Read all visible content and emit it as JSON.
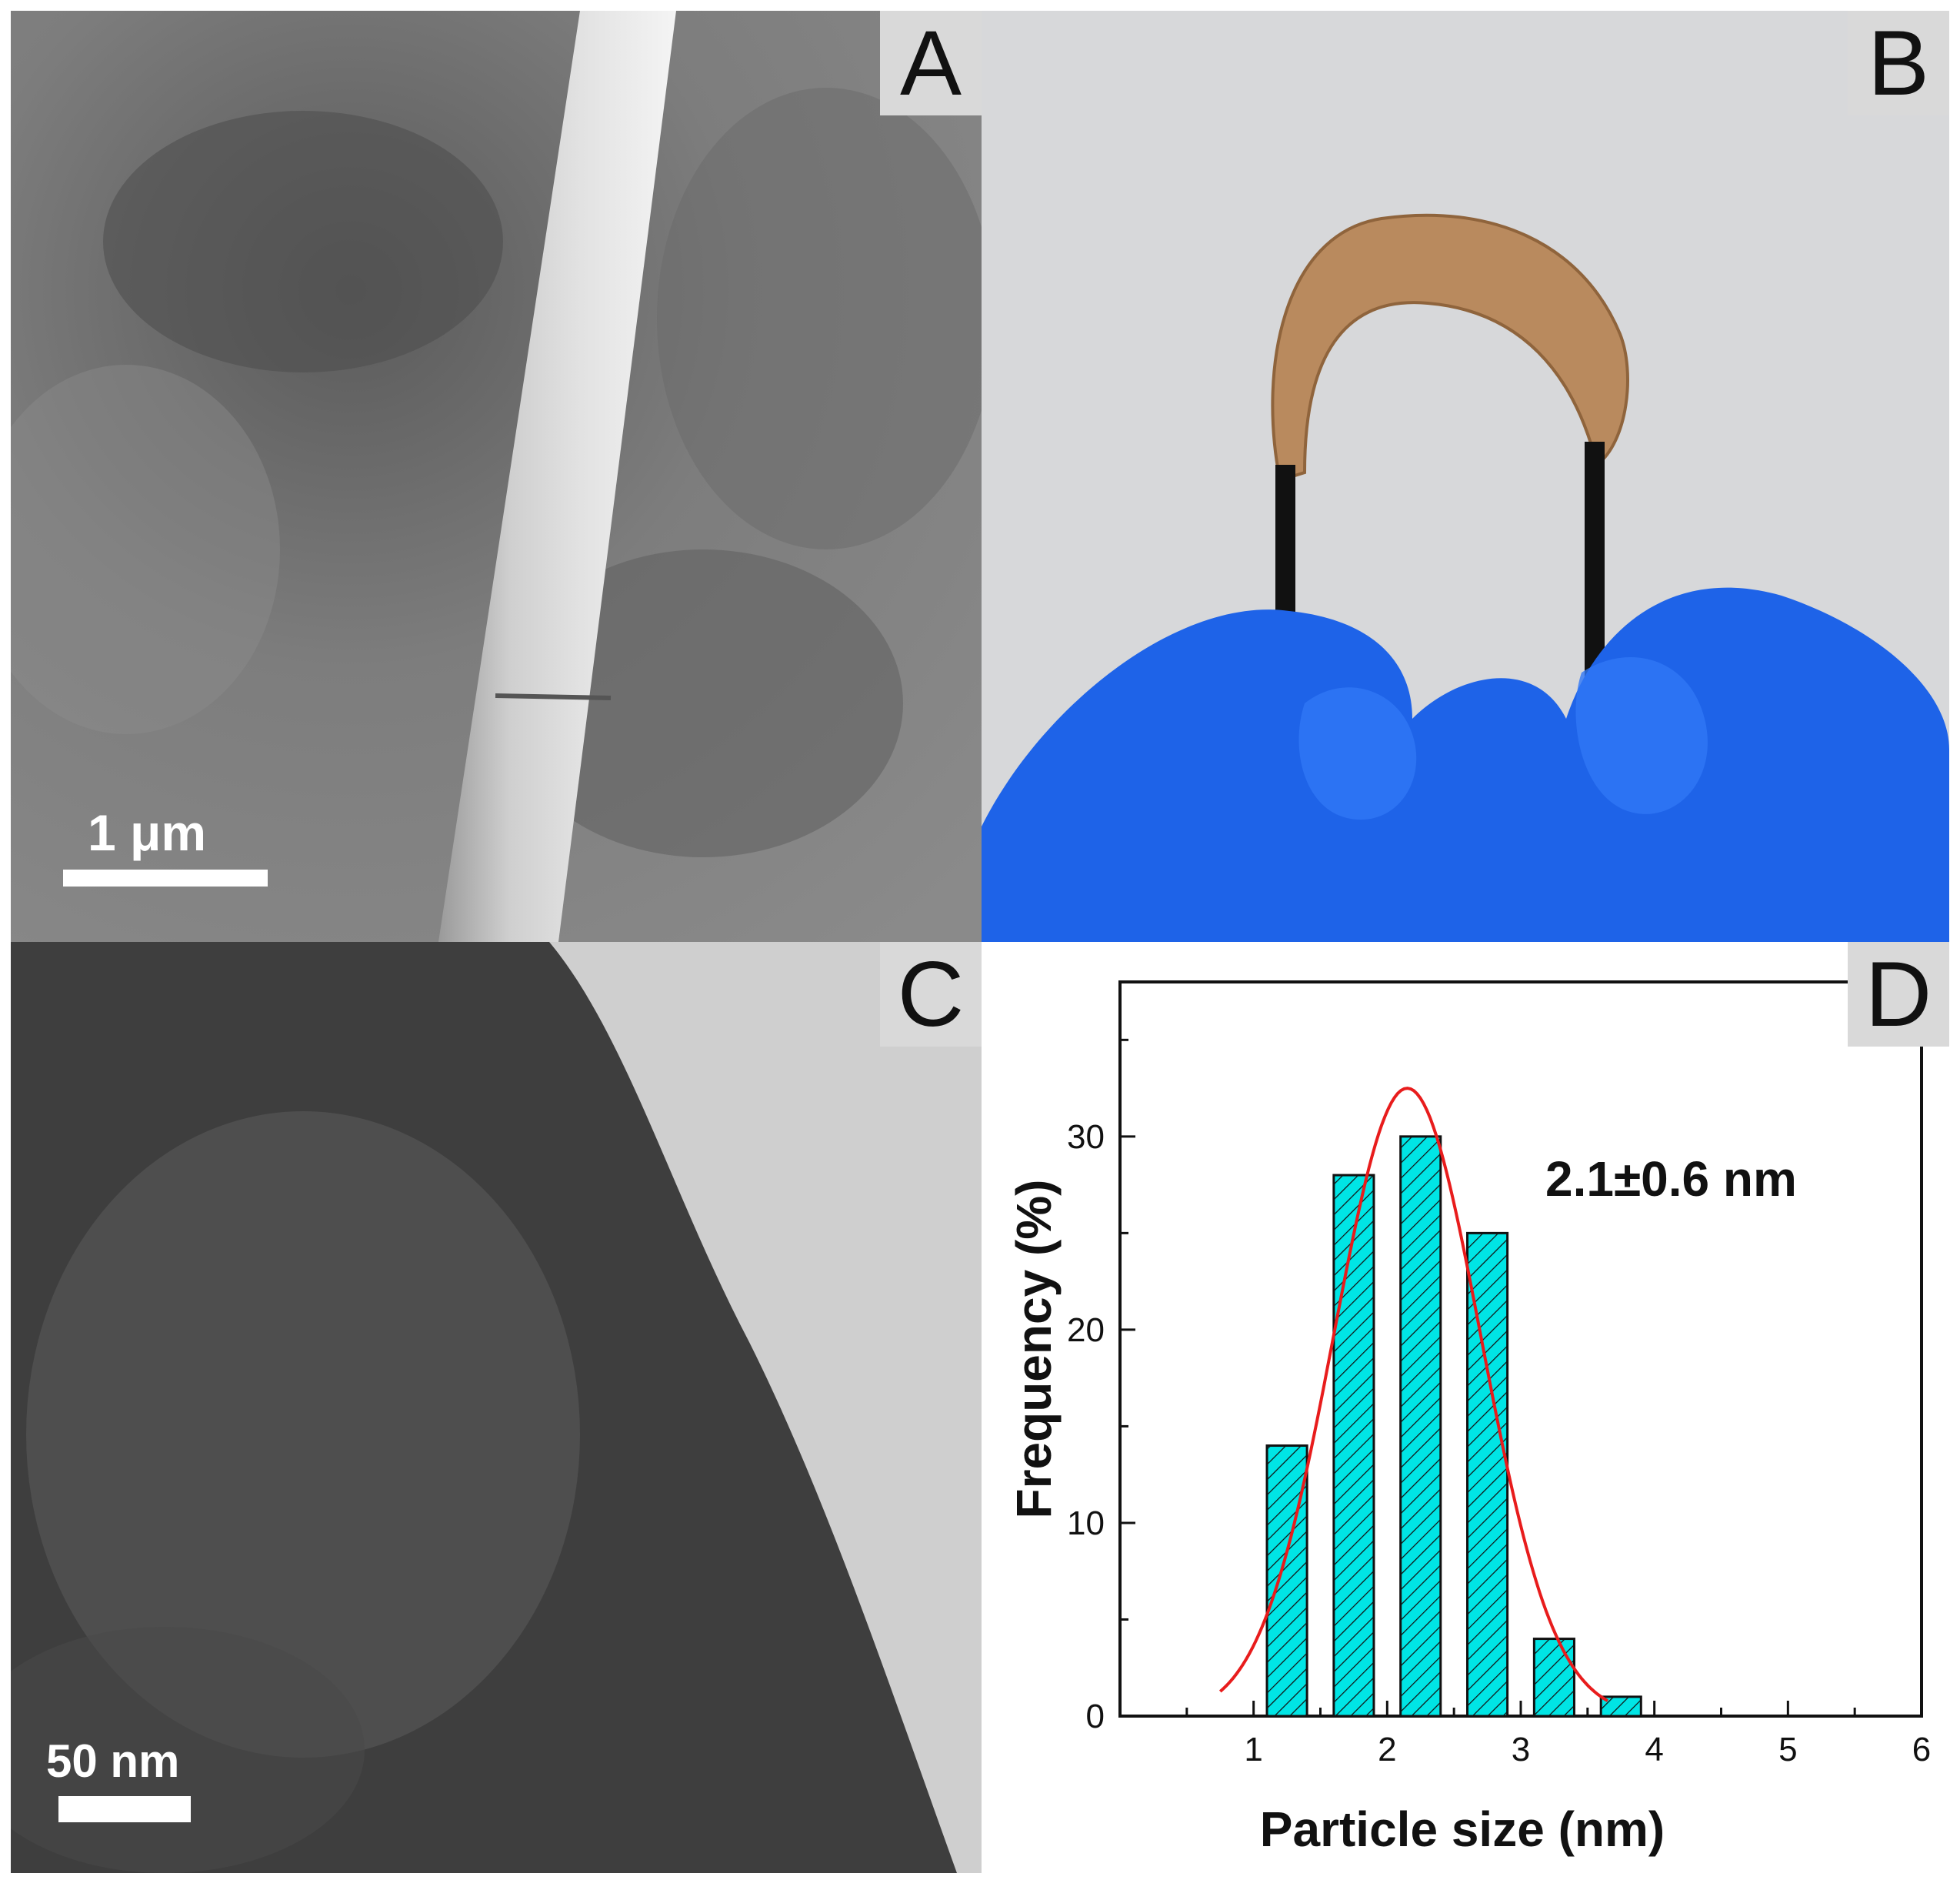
{
  "panels": {
    "a": {
      "label": "A",
      "scale_bar": "1 μm"
    },
    "b": {
      "label": "B"
    },
    "c": {
      "label": "C",
      "scale_bar": "50 nm"
    },
    "d": {
      "label": "D"
    }
  },
  "chart_data": {
    "type": "bar",
    "xlabel": "Particle size (nm)",
    "ylabel": "Frequency (%)",
    "annotation": "2.1±0.6 nm",
    "xlim": [
      0,
      6
    ],
    "ylim": [
      0,
      38
    ],
    "x_ticks": [
      1,
      2,
      3,
      4,
      5,
      6
    ],
    "y_ticks": [
      0,
      10,
      20,
      30
    ],
    "bin_width": 0.3,
    "bars": [
      {
        "x": 1.25,
        "value": 14
      },
      {
        "x": 1.75,
        "value": 28
      },
      {
        "x": 2.25,
        "value": 30
      },
      {
        "x": 2.75,
        "value": 25
      },
      {
        "x": 3.25,
        "value": 4
      },
      {
        "x": 3.75,
        "value": 1
      }
    ],
    "fit": {
      "type": "gaussian",
      "center": 2.15,
      "amplitude": 32.5,
      "sigma": 0.55,
      "x_range": [
        0.75,
        3.65
      ]
    },
    "bar_color": "#00e5e5",
    "fit_color": "#e81c1c"
  }
}
